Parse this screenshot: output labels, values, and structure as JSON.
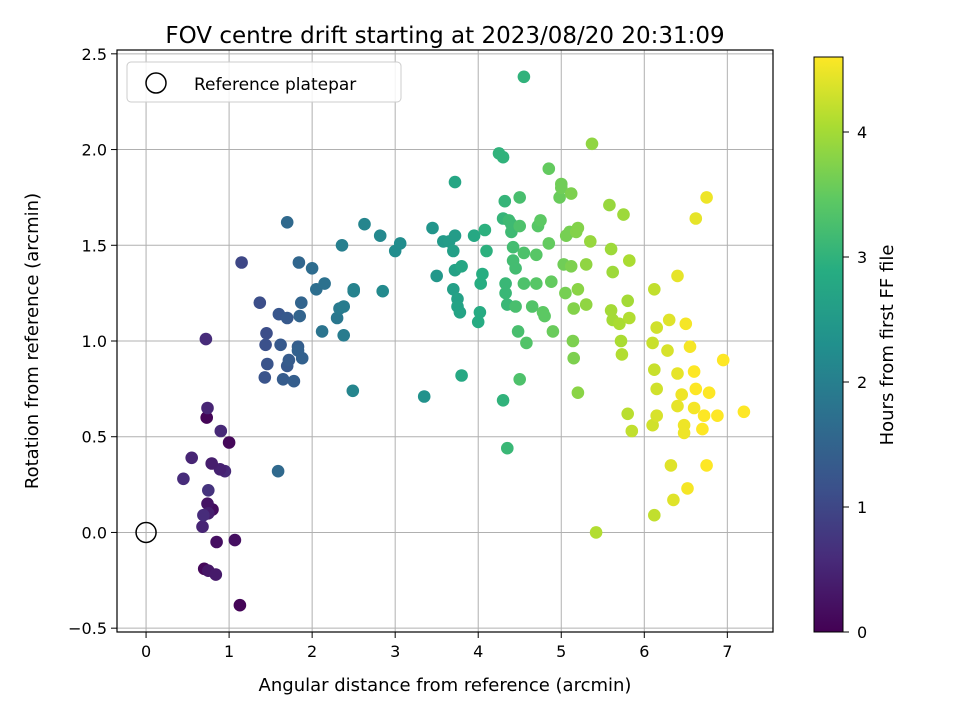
{
  "chart_data": {
    "type": "scatter",
    "title": "FOV centre drift starting at 2023/08/20 20:31:09",
    "xlabel": "Angular distance from reference (arcmin)",
    "ylabel": "Rotation from reference (arcmin)",
    "xlim": [
      -0.35,
      7.55
    ],
    "ylim": [
      -0.52,
      2.52
    ],
    "xticks": [
      "0",
      "1",
      "2",
      "3",
      "4",
      "5",
      "6",
      "7"
    ],
    "yticks": [
      "−0.5",
      "0.0",
      "0.5",
      "1.0",
      "1.5",
      "2.0",
      "2.5"
    ],
    "grid": true,
    "legend": {
      "placement": "top-left",
      "entries": [
        "Reference platepar"
      ]
    },
    "reference_point": {
      "x": 0.0,
      "y": 0.0
    },
    "colorbar": {
      "label": "Hours from first FF file",
      "range": [
        0,
        4.6
      ],
      "ticks": [
        "0",
        "1",
        "2",
        "3",
        "4"
      ],
      "colormap": "viridis"
    },
    "points": [
      {
        "x": 0.7,
        "y": -0.19,
        "c": 0.1
      },
      {
        "x": 1.13,
        "y": -0.38,
        "c": 0.05
      },
      {
        "x": 1.0,
        "y": 0.47,
        "c": 0.1
      },
      {
        "x": 0.73,
        "y": 0.6,
        "c": 0.05
      },
      {
        "x": 1.07,
        "y": -0.04,
        "c": 0.2
      },
      {
        "x": 0.85,
        "y": -0.05,
        "c": 0.2
      },
      {
        "x": 0.8,
        "y": 0.12,
        "c": 0.15
      },
      {
        "x": 0.74,
        "y": 0.15,
        "c": 0.25
      },
      {
        "x": 0.75,
        "y": -0.2,
        "c": 0.3
      },
      {
        "x": 0.84,
        "y": -0.22,
        "c": 0.35
      },
      {
        "x": 0.68,
        "y": 0.03,
        "c": 0.5
      },
      {
        "x": 0.75,
        "y": 0.1,
        "c": 0.4
      },
      {
        "x": 0.69,
        "y": 0.09,
        "c": 0.6
      },
      {
        "x": 0.95,
        "y": 0.32,
        "c": 0.55
      },
      {
        "x": 0.89,
        "y": 0.33,
        "c": 0.45
      },
      {
        "x": 0.79,
        "y": 0.36,
        "c": 0.4
      },
      {
        "x": 0.55,
        "y": 0.39,
        "c": 0.5
      },
      {
        "x": 0.45,
        "y": 0.28,
        "c": 0.6
      },
      {
        "x": 0.9,
        "y": 0.53,
        "c": 0.55
      },
      {
        "x": 0.74,
        "y": 0.65,
        "c": 0.5
      },
      {
        "x": 0.75,
        "y": 0.22,
        "c": 0.7
      },
      {
        "x": 0.72,
        "y": 1.01,
        "c": 0.6
      },
      {
        "x": 1.15,
        "y": 1.41,
        "c": 1.0
      },
      {
        "x": 1.37,
        "y": 1.2,
        "c": 1.1
      },
      {
        "x": 1.45,
        "y": 1.04,
        "c": 1.1
      },
      {
        "x": 1.44,
        "y": 0.98,
        "c": 1.15
      },
      {
        "x": 1.46,
        "y": 0.88,
        "c": 1.2
      },
      {
        "x": 1.43,
        "y": 0.81,
        "c": 1.2
      },
      {
        "x": 1.6,
        "y": 1.14,
        "c": 1.25
      },
      {
        "x": 1.62,
        "y": 0.98,
        "c": 1.3
      },
      {
        "x": 1.7,
        "y": 1.12,
        "c": 1.3
      },
      {
        "x": 1.65,
        "y": 0.8,
        "c": 1.35
      },
      {
        "x": 1.7,
        "y": 0.87,
        "c": 1.3
      },
      {
        "x": 1.72,
        "y": 0.9,
        "c": 1.35
      },
      {
        "x": 1.78,
        "y": 0.79,
        "c": 1.4
      },
      {
        "x": 1.83,
        "y": 0.97,
        "c": 1.4
      },
      {
        "x": 1.83,
        "y": 0.95,
        "c": 1.45
      },
      {
        "x": 1.88,
        "y": 0.91,
        "c": 1.45
      },
      {
        "x": 1.85,
        "y": 1.13,
        "c": 1.5
      },
      {
        "x": 1.87,
        "y": 1.2,
        "c": 1.5
      },
      {
        "x": 1.84,
        "y": 1.41,
        "c": 1.55
      },
      {
        "x": 1.7,
        "y": 1.62,
        "c": 1.6
      },
      {
        "x": 1.59,
        "y": 0.32,
        "c": 1.6
      },
      {
        "x": 2.0,
        "y": 1.38,
        "c": 1.65
      },
      {
        "x": 2.05,
        "y": 1.27,
        "c": 1.7
      },
      {
        "x": 2.15,
        "y": 1.3,
        "c": 1.75
      },
      {
        "x": 2.12,
        "y": 1.05,
        "c": 1.8
      },
      {
        "x": 2.3,
        "y": 1.12,
        "c": 1.85
      },
      {
        "x": 2.33,
        "y": 1.17,
        "c": 1.9
      },
      {
        "x": 2.38,
        "y": 1.18,
        "c": 1.95
      },
      {
        "x": 2.36,
        "y": 1.5,
        "c": 2.0
      },
      {
        "x": 2.38,
        "y": 1.03,
        "c": 1.95
      },
      {
        "x": 2.5,
        "y": 1.27,
        "c": 2.05
      },
      {
        "x": 2.5,
        "y": 1.26,
        "c": 2.05
      },
      {
        "x": 2.49,
        "y": 0.74,
        "c": 2.1
      },
      {
        "x": 2.63,
        "y": 1.61,
        "c": 2.1
      },
      {
        "x": 2.82,
        "y": 1.55,
        "c": 2.15
      },
      {
        "x": 2.85,
        "y": 1.26,
        "c": 2.2
      },
      {
        "x": 3.0,
        "y": 1.47,
        "c": 2.25
      },
      {
        "x": 3.06,
        "y": 1.51,
        "c": 2.25
      },
      {
        "x": 3.35,
        "y": 0.71,
        "c": 2.35
      },
      {
        "x": 3.45,
        "y": 1.59,
        "c": 2.4
      },
      {
        "x": 3.5,
        "y": 1.34,
        "c": 2.45
      },
      {
        "x": 3.58,
        "y": 1.52,
        "c": 2.5
      },
      {
        "x": 3.65,
        "y": 1.52,
        "c": 2.55
      },
      {
        "x": 3.72,
        "y": 1.55,
        "c": 2.55
      },
      {
        "x": 3.7,
        "y": 1.47,
        "c": 2.6
      },
      {
        "x": 3.7,
        "y": 1.27,
        "c": 2.6
      },
      {
        "x": 3.72,
        "y": 1.37,
        "c": 2.65
      },
      {
        "x": 3.75,
        "y": 1.22,
        "c": 2.65
      },
      {
        "x": 3.75,
        "y": 1.18,
        "c": 2.7
      },
      {
        "x": 3.78,
        "y": 1.15,
        "c": 2.7
      },
      {
        "x": 3.8,
        "y": 1.39,
        "c": 2.75
      },
      {
        "x": 3.72,
        "y": 1.83,
        "c": 2.75
      },
      {
        "x": 3.8,
        "y": 0.82,
        "c": 2.8
      },
      {
        "x": 3.95,
        "y": 1.55,
        "c": 2.8
      },
      {
        "x": 4.0,
        "y": 1.1,
        "c": 2.85
      },
      {
        "x": 4.02,
        "y": 1.15,
        "c": 2.85
      },
      {
        "x": 4.03,
        "y": 1.3,
        "c": 2.9
      },
      {
        "x": 4.05,
        "y": 1.35,
        "c": 2.9
      },
      {
        "x": 4.1,
        "y": 1.47,
        "c": 2.95
      },
      {
        "x": 4.08,
        "y": 1.58,
        "c": 2.95
      },
      {
        "x": 4.25,
        "y": 1.98,
        "c": 3.0
      },
      {
        "x": 4.3,
        "y": 1.96,
        "c": 3.0
      },
      {
        "x": 4.3,
        "y": 1.64,
        "c": 3.05
      },
      {
        "x": 4.32,
        "y": 1.73,
        "c": 3.05
      },
      {
        "x": 4.33,
        "y": 1.3,
        "c": 3.1
      },
      {
        "x": 4.33,
        "y": 1.25,
        "c": 3.1
      },
      {
        "x": 4.35,
        "y": 1.19,
        "c": 3.1
      },
      {
        "x": 4.37,
        "y": 1.63,
        "c": 3.15
      },
      {
        "x": 4.4,
        "y": 1.61,
        "c": 3.15
      },
      {
        "x": 4.4,
        "y": 1.57,
        "c": 3.15
      },
      {
        "x": 4.42,
        "y": 1.49,
        "c": 3.2
      },
      {
        "x": 4.42,
        "y": 1.42,
        "c": 3.2
      },
      {
        "x": 4.45,
        "y": 1.38,
        "c": 3.2
      },
      {
        "x": 4.45,
        "y": 1.18,
        "c": 3.25
      },
      {
        "x": 4.48,
        "y": 1.05,
        "c": 3.25
      },
      {
        "x": 4.5,
        "y": 1.75,
        "c": 3.25
      },
      {
        "x": 4.5,
        "y": 1.6,
        "c": 3.3
      },
      {
        "x": 4.55,
        "y": 1.46,
        "c": 3.3
      },
      {
        "x": 4.55,
        "y": 1.3,
        "c": 3.3
      },
      {
        "x": 4.5,
        "y": 0.8,
        "c": 3.3
      },
      {
        "x": 4.3,
        "y": 0.69,
        "c": 3.0
      },
      {
        "x": 4.35,
        "y": 0.44,
        "c": 3.1
      },
      {
        "x": 4.55,
        "y": 2.38,
        "c": 3.0
      },
      {
        "x": 4.58,
        "y": 0.99,
        "c": 3.35
      },
      {
        "x": 4.65,
        "y": 1.18,
        "c": 3.35
      },
      {
        "x": 4.7,
        "y": 1.45,
        "c": 3.4
      },
      {
        "x": 4.7,
        "y": 1.3,
        "c": 3.4
      },
      {
        "x": 4.72,
        "y": 1.6,
        "c": 3.4
      },
      {
        "x": 4.75,
        "y": 1.63,
        "c": 3.45
      },
      {
        "x": 4.78,
        "y": 1.15,
        "c": 3.45
      },
      {
        "x": 4.8,
        "y": 1.13,
        "c": 3.45
      },
      {
        "x": 4.85,
        "y": 1.9,
        "c": 3.5
      },
      {
        "x": 4.85,
        "y": 1.51,
        "c": 3.5
      },
      {
        "x": 4.88,
        "y": 1.31,
        "c": 3.5
      },
      {
        "x": 4.9,
        "y": 1.05,
        "c": 3.55
      },
      {
        "x": 4.98,
        "y": 1.75,
        "c": 3.55
      },
      {
        "x": 5.0,
        "y": 1.82,
        "c": 3.6
      },
      {
        "x": 5.0,
        "y": 1.8,
        "c": 3.6
      },
      {
        "x": 5.03,
        "y": 1.4,
        "c": 3.6
      },
      {
        "x": 5.05,
        "y": 1.25,
        "c": 3.65
      },
      {
        "x": 5.06,
        "y": 1.55,
        "c": 3.65
      },
      {
        "x": 5.1,
        "y": 1.57,
        "c": 3.65
      },
      {
        "x": 5.12,
        "y": 1.77,
        "c": 3.7
      },
      {
        "x": 5.12,
        "y": 1.39,
        "c": 3.7
      },
      {
        "x": 5.14,
        "y": 1.0,
        "c": 3.7
      },
      {
        "x": 5.15,
        "y": 0.91,
        "c": 3.7
      },
      {
        "x": 5.15,
        "y": 1.17,
        "c": 3.75
      },
      {
        "x": 5.18,
        "y": 1.57,
        "c": 3.75
      },
      {
        "x": 5.2,
        "y": 1.59,
        "c": 3.75
      },
      {
        "x": 5.2,
        "y": 1.27,
        "c": 3.8
      },
      {
        "x": 5.2,
        "y": 0.73,
        "c": 3.8
      },
      {
        "x": 5.3,
        "y": 1.4,
        "c": 3.85
      },
      {
        "x": 5.3,
        "y": 1.19,
        "c": 3.85
      },
      {
        "x": 5.35,
        "y": 1.52,
        "c": 3.9
      },
      {
        "x": 5.37,
        "y": 2.03,
        "c": 3.85
      },
      {
        "x": 5.42,
        "y": 0.0,
        "c": 4.1
      },
      {
        "x": 5.58,
        "y": 1.71,
        "c": 3.9
      },
      {
        "x": 5.6,
        "y": 1.48,
        "c": 3.95
      },
      {
        "x": 5.62,
        "y": 1.36,
        "c": 3.95
      },
      {
        "x": 5.6,
        "y": 1.16,
        "c": 4.0
      },
      {
        "x": 5.62,
        "y": 1.11,
        "c": 4.0
      },
      {
        "x": 5.7,
        "y": 1.09,
        "c": 4.05
      },
      {
        "x": 5.72,
        "y": 1.0,
        "c": 4.05
      },
      {
        "x": 5.73,
        "y": 0.93,
        "c": 4.1
      },
      {
        "x": 5.75,
        "y": 1.66,
        "c": 3.95
      },
      {
        "x": 5.8,
        "y": 1.21,
        "c": 4.0
      },
      {
        "x": 5.82,
        "y": 1.42,
        "c": 4.05
      },
      {
        "x": 5.82,
        "y": 1.12,
        "c": 4.1
      },
      {
        "x": 5.8,
        "y": 0.62,
        "c": 4.15
      },
      {
        "x": 5.85,
        "y": 0.53,
        "c": 4.2
      },
      {
        "x": 6.1,
        "y": 0.99,
        "c": 4.25
      },
      {
        "x": 6.12,
        "y": 1.27,
        "c": 4.2
      },
      {
        "x": 6.12,
        "y": 0.85,
        "c": 4.25
      },
      {
        "x": 6.15,
        "y": 1.07,
        "c": 4.3
      },
      {
        "x": 6.15,
        "y": 0.75,
        "c": 4.3
      },
      {
        "x": 6.1,
        "y": 0.56,
        "c": 4.3
      },
      {
        "x": 6.15,
        "y": 0.61,
        "c": 4.35
      },
      {
        "x": 6.12,
        "y": 0.09,
        "c": 4.2
      },
      {
        "x": 6.28,
        "y": 0.95,
        "c": 4.35
      },
      {
        "x": 6.3,
        "y": 1.11,
        "c": 4.4
      },
      {
        "x": 6.32,
        "y": 0.35,
        "c": 4.4
      },
      {
        "x": 6.35,
        "y": 0.17,
        "c": 4.4
      },
      {
        "x": 6.4,
        "y": 1.34,
        "c": 4.45
      },
      {
        "x": 6.4,
        "y": 0.83,
        "c": 4.45
      },
      {
        "x": 6.4,
        "y": 0.66,
        "c": 4.45
      },
      {
        "x": 6.45,
        "y": 0.72,
        "c": 4.5
      },
      {
        "x": 6.48,
        "y": 0.56,
        "c": 4.5
      },
      {
        "x": 6.48,
        "y": 0.52,
        "c": 4.5
      },
      {
        "x": 6.5,
        "y": 1.09,
        "c": 4.55
      },
      {
        "x": 6.52,
        "y": 0.23,
        "c": 4.55
      },
      {
        "x": 6.55,
        "y": 0.97,
        "c": 4.55
      },
      {
        "x": 6.6,
        "y": 0.65,
        "c": 4.55
      },
      {
        "x": 6.6,
        "y": 0.84,
        "c": 4.6
      },
      {
        "x": 6.62,
        "y": 0.75,
        "c": 4.6
      },
      {
        "x": 6.62,
        "y": 1.64,
        "c": 4.45
      },
      {
        "x": 6.7,
        "y": 0.54,
        "c": 4.6
      },
      {
        "x": 6.72,
        "y": 0.61,
        "c": 4.6
      },
      {
        "x": 6.75,
        "y": 0.35,
        "c": 4.6
      },
      {
        "x": 6.75,
        "y": 1.75,
        "c": 4.5
      },
      {
        "x": 6.78,
        "y": 0.73,
        "c": 4.6
      },
      {
        "x": 6.88,
        "y": 0.61,
        "c": 4.6
      },
      {
        "x": 6.95,
        "y": 0.9,
        "c": 4.6
      },
      {
        "x": 7.2,
        "y": 0.63,
        "c": 4.6
      }
    ]
  }
}
